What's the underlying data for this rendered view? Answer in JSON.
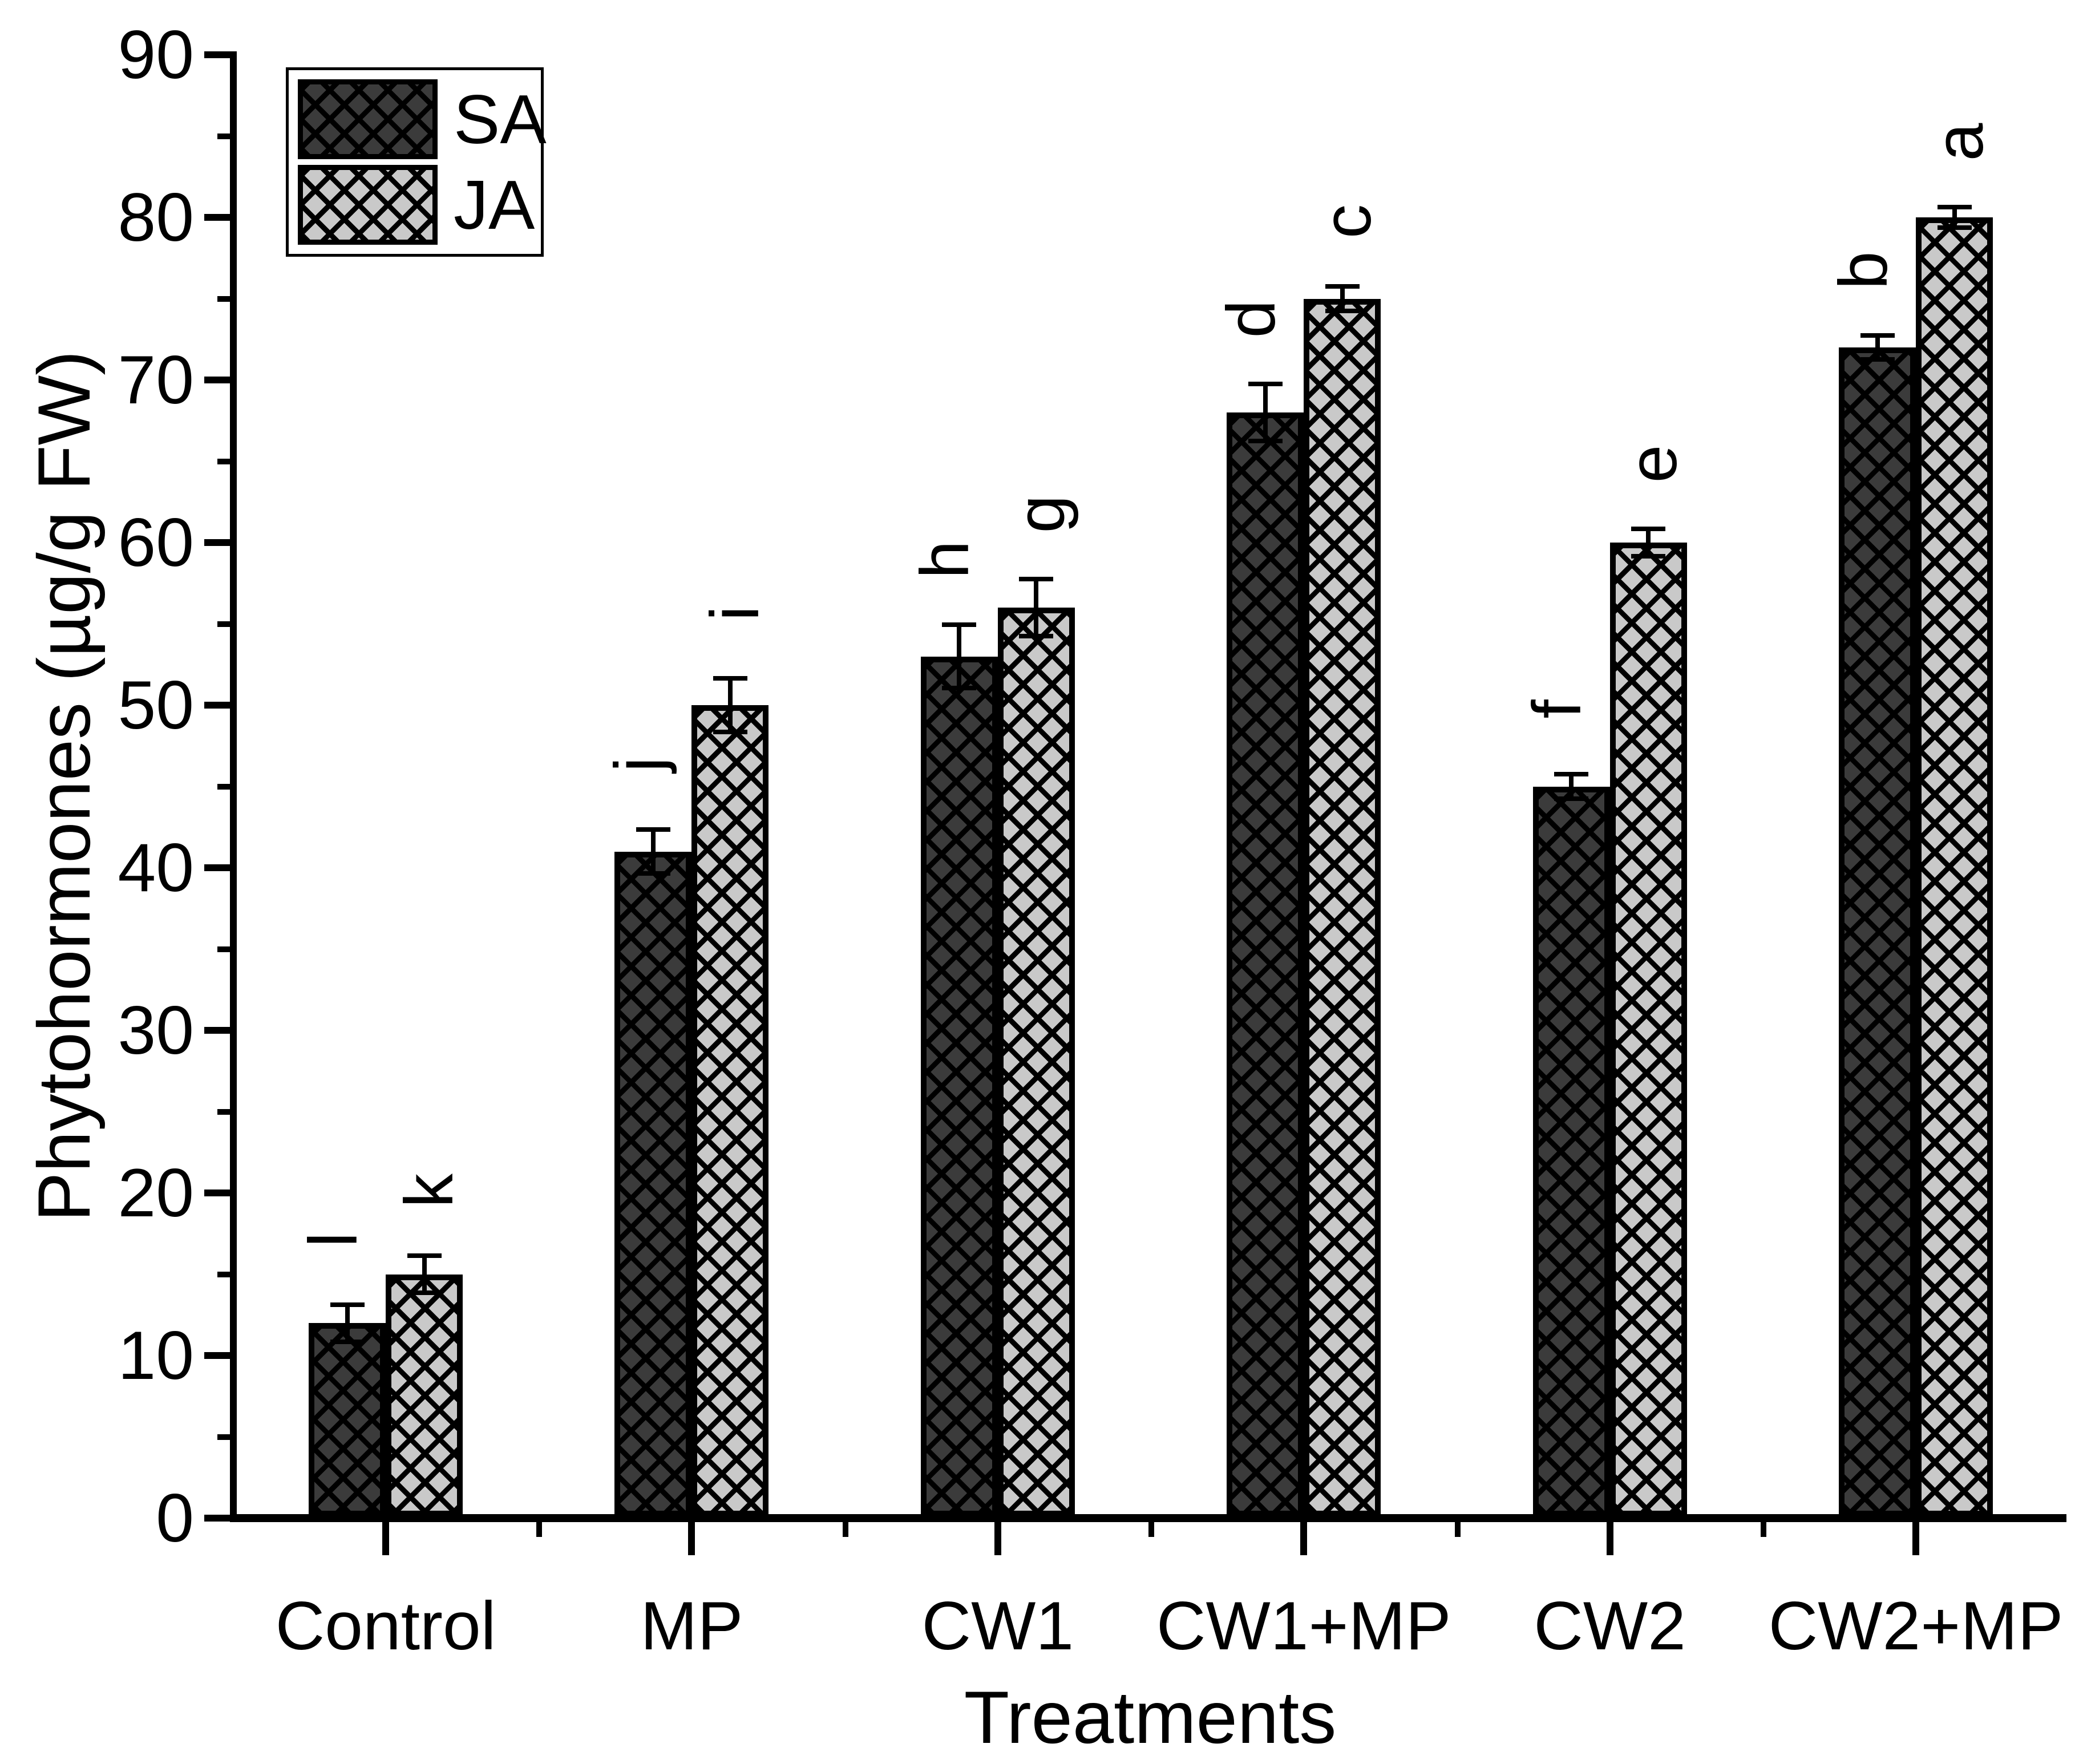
{
  "chart_data": {
    "type": "bar",
    "title": "",
    "xlabel": "Treatments",
    "ylabel": "Phytohormones (µg/g FW)",
    "ylim": [
      0,
      90
    ],
    "y_major_tick_step": 10,
    "y_minor_tick_step": 5,
    "y_tick_labels": [
      "0",
      "10",
      "20",
      "30",
      "40",
      "50",
      "60",
      "70",
      "80",
      "90"
    ],
    "categories": [
      "Control",
      "MP",
      "CW1",
      "CW1+MP",
      "CW2",
      "CW2+MP"
    ],
    "series": [
      {
        "name": "SA",
        "fill": "#3b3b3b",
        "hatch": "diagonal-crosshatch",
        "values": [
          12,
          41,
          53,
          68,
          45,
          72
        ],
        "errors": [
          1.0,
          1.2,
          1.8,
          1.6,
          0.6,
          0.6
        ],
        "letters": [
          "l",
          "j",
          "h",
          "d",
          "f",
          "b"
        ]
      },
      {
        "name": "JA",
        "fill": "#c9c9c9",
        "hatch": "diagonal-crosshatch",
        "values": [
          15,
          50,
          56,
          75,
          60,
          80
        ],
        "errors": [
          1.0,
          1.5,
          1.6,
          0.6,
          0.7,
          0.5
        ],
        "letters": [
          "k",
          "i",
          "g",
          "c",
          "e",
          "a"
        ]
      }
    ],
    "legend": {
      "position": "top-left",
      "entries": [
        "SA",
        "JA"
      ]
    },
    "grid": false,
    "error_bars": true,
    "significance_letters_rotated": true
  }
}
